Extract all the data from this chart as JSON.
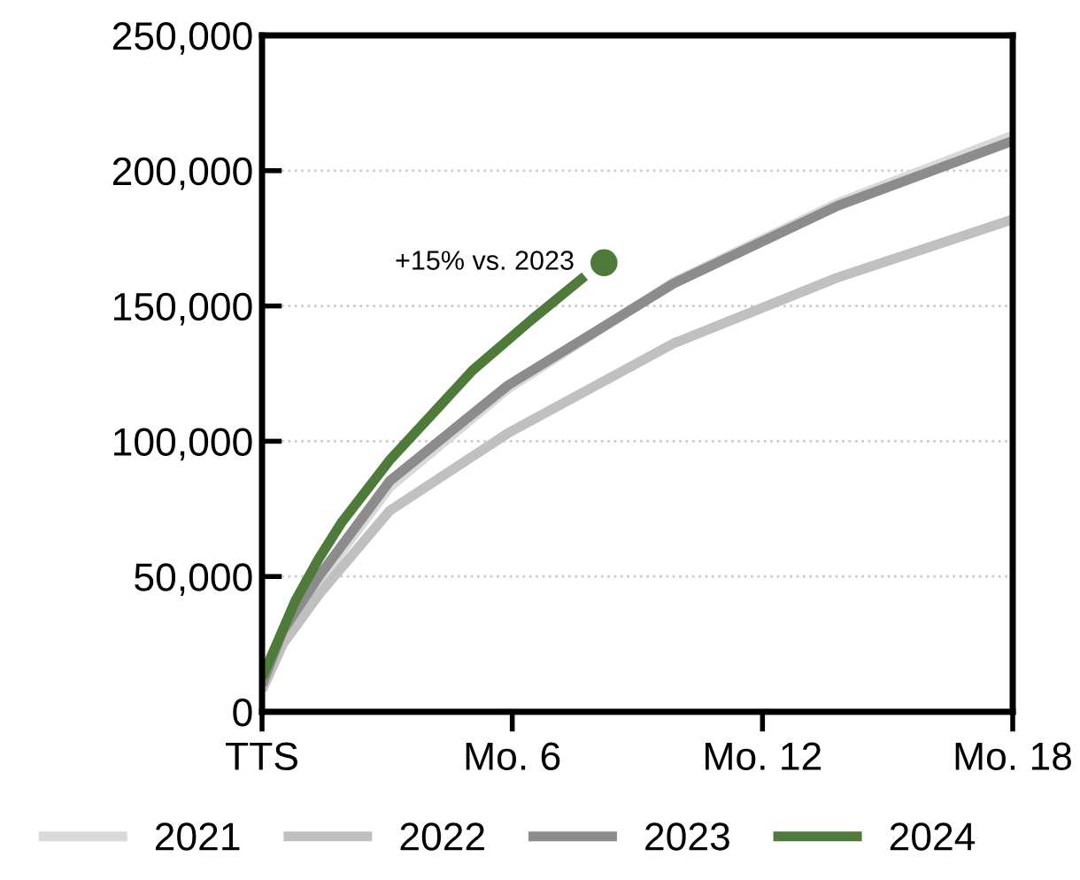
{
  "chart_data": {
    "type": "line",
    "xlim": [
      0,
      18
    ],
    "xticks": [
      {
        "value": 0,
        "label": "TTS"
      },
      {
        "value": 6,
        "label": "Mo. 6"
      },
      {
        "value": 12,
        "label": "Mo. 12"
      },
      {
        "value": 18,
        "label": "Mo. 18"
      }
    ],
    "ylim": [
      0,
      250000
    ],
    "yticks": [
      {
        "value": 0,
        "label": "0"
      },
      {
        "value": 50000,
        "label": "50,000"
      },
      {
        "value": 100000,
        "label": "100,000"
      },
      {
        "value": 150000,
        "label": "150,000"
      },
      {
        "value": 200000,
        "label": "200,000"
      },
      {
        "value": 250000,
        "label": "250,000"
      }
    ],
    "grid": "y",
    "legend": "bottom",
    "series": [
      {
        "name": "2021",
        "color": "#d9d9d9",
        "x": [
          0,
          0.5,
          1.36,
          3.06,
          5.9,
          9.87,
          13.8,
          18
        ],
        "values": [
          9000,
          28000,
          48000,
          83000,
          119500,
          158800,
          188000,
          213000
        ]
      },
      {
        "name": "2022",
        "color": "#c0c0c0",
        "x": [
          0,
          0.5,
          1.36,
          3.06,
          5.9,
          9.87,
          13.8,
          18
        ],
        "values": [
          8000,
          25000,
          43300,
          74300,
          103000,
          136200,
          160500,
          182000
        ]
      },
      {
        "name": "2023",
        "color": "#8c8c8c",
        "x": [
          0,
          0.5,
          1.36,
          3.06,
          5.9,
          9.87,
          13.8,
          18
        ],
        "values": [
          10000,
          30000,
          50000,
          85300,
          120700,
          158300,
          187000,
          211000
        ]
      },
      {
        "name": "2024",
        "color": "#4e7a3a",
        "x": [
          0,
          0.8,
          1.36,
          1.9,
          3.06,
          5.05,
          6.47,
          7.74
        ],
        "values": [
          12600,
          41100,
          56600,
          69800,
          93000,
          126200,
          145000,
          161000
        ]
      }
    ],
    "annotations": [
      {
        "text": "+15% vs. 2023",
        "x": 8.2,
        "y": 166000
      }
    ]
  }
}
